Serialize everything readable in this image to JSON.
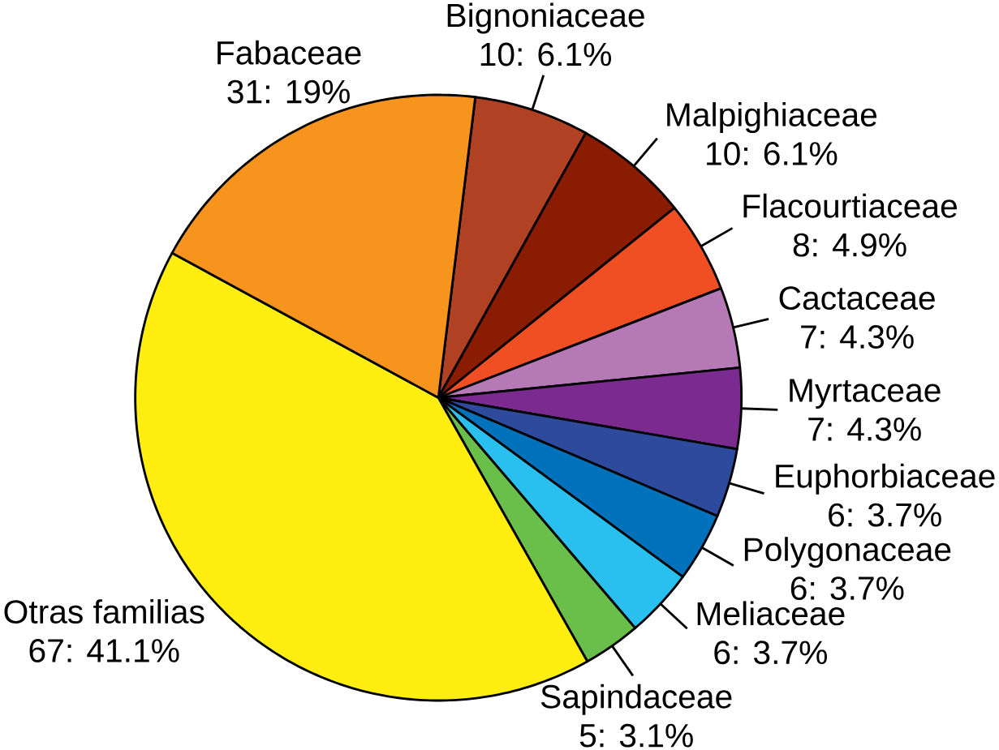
{
  "chart_data": {
    "type": "pie",
    "categories": [
      "Bignoniaceae",
      "Malpighiaceae",
      "Flacourtiaceae",
      "Cactaceae",
      "Myrtaceae",
      "Euphorbiaceae",
      "Polygonaceae",
      "Meliaceae",
      "Sapindaceae",
      "Otras familias",
      "Fabaceae"
    ],
    "values": [
      10,
      10,
      8,
      7,
      7,
      6,
      6,
      6,
      5,
      67,
      31
    ],
    "value_labels": [
      "10: 6.1%",
      "10: 6.1%",
      "8: 4.9%",
      "7: 4.3%",
      "7: 4.3%",
      "6: 3.7%",
      "6: 3.7%",
      "6: 3.7%",
      "5: 3.1%",
      "67: 41.1%",
      "31: 19%"
    ],
    "colors": [
      "#b04122",
      "#8a1c02",
      "#f04e23",
      "#b57ab5",
      "#7b2a8f",
      "#2e4a9c",
      "#0072bc",
      "#29c0ef",
      "#6abf4b",
      "#ffee10",
      "#f7941d"
    ]
  }
}
